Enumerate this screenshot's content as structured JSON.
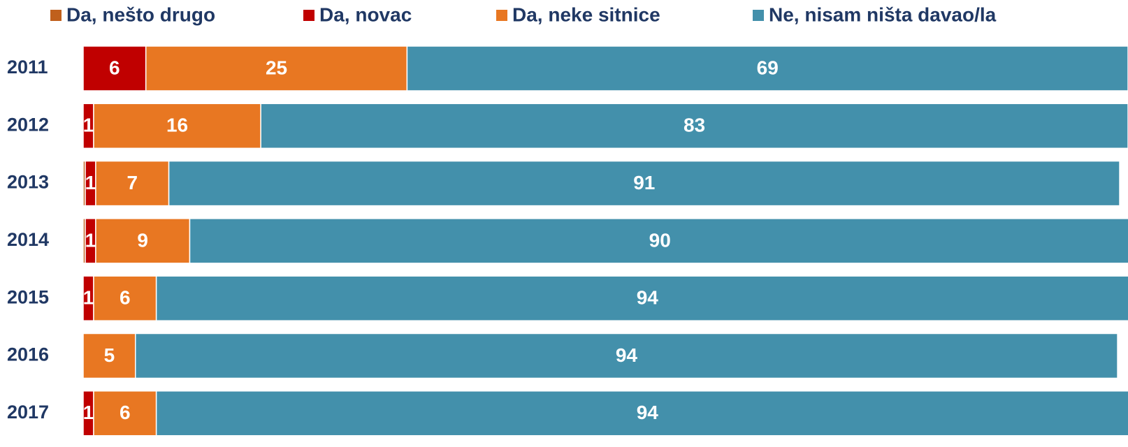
{
  "chart_data": {
    "type": "stacked-barh",
    "categories": [
      "2011",
      "2012",
      "2013",
      "2014",
      "2015",
      "2016",
      "2017"
    ],
    "xlim": [
      0,
      100
    ],
    "series": [
      {
        "name": "Da, nešto drugo",
        "color": "#c0601c",
        "values": [
          0,
          0,
          0.2,
          0.2,
          0,
          0,
          0
        ],
        "value_labels": [
          null,
          null,
          null,
          null,
          null,
          null,
          null
        ]
      },
      {
        "name": "Da, novac",
        "color": "#c00000",
        "values": [
          6,
          1,
          1,
          1,
          1,
          0,
          1
        ],
        "value_labels": [
          "6",
          "1",
          "1",
          "1",
          "1",
          null,
          "1"
        ]
      },
      {
        "name": "Da, neke sitnice",
        "color": "#e87722",
        "values": [
          25,
          16,
          7,
          9,
          6,
          5,
          6
        ],
        "value_labels": [
          "25",
          "16",
          "7",
          "9",
          "6",
          "5",
          "6"
        ]
      },
      {
        "name": "Ne, nisam ništa davao/la",
        "color": "#4390ab",
        "values": [
          69,
          83,
          91,
          90,
          94,
          94,
          94
        ],
        "value_labels": [
          "69",
          "83",
          "91",
          "90",
          "94",
          "94",
          "94"
        ]
      }
    ]
  }
}
